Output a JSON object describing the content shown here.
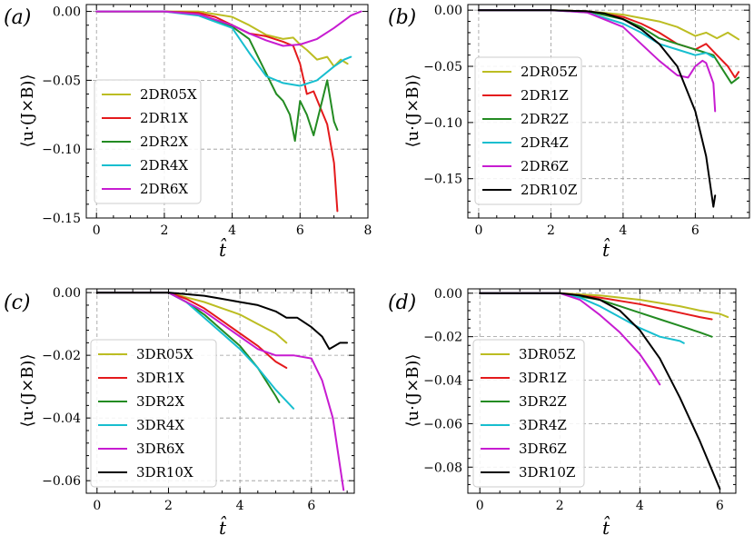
{
  "chart_data": [
    {
      "type": "line",
      "panel_label": "(a)",
      "xlabel": "t̂",
      "ylabel": "⟨u·(J×B)⟩",
      "xlim": [
        -0.3,
        8
      ],
      "ylim": [
        -0.15,
        0.005
      ],
      "xticks": [
        0,
        2,
        4,
        6,
        8
      ],
      "xtick_labels": [
        "0",
        "2",
        "4",
        "6",
        "8"
      ],
      "yticks": [
        0,
        -0.05,
        -0.1,
        -0.15
      ],
      "ytick_labels": [
        "0.00",
        "−0.05",
        "−0.10",
        "−0.15"
      ],
      "grid": true,
      "legend": "bottom-left",
      "series": [
        {
          "name": "2DR05X",
          "color": "#bcbd22",
          "x": [
            0,
            2,
            3,
            4,
            4.5,
            5,
            5.5,
            5.8,
            6,
            6.2,
            6.5,
            6.8,
            7,
            7.2,
            7.4
          ],
          "y": [
            0,
            0,
            0,
            -0.004,
            -0.01,
            -0.017,
            -0.02,
            -0.019,
            -0.024,
            -0.028,
            -0.035,
            -0.033,
            -0.04,
            -0.035,
            -0.038
          ]
        },
        {
          "name": "2DR1X",
          "color": "#e41a1c",
          "x": [
            0,
            2,
            3,
            3.5,
            4,
            4.5,
            5,
            5.5,
            5.8,
            6,
            6.2,
            6.4,
            6.6,
            6.8,
            7,
            7.1
          ],
          "y": [
            0,
            0,
            -0.001,
            -0.004,
            -0.01,
            -0.016,
            -0.018,
            -0.022,
            -0.025,
            -0.038,
            -0.06,
            -0.058,
            -0.07,
            -0.082,
            -0.11,
            -0.145
          ]
        },
        {
          "name": "2DR2X",
          "color": "#238b22",
          "x": [
            0,
            2,
            3,
            4,
            4.5,
            5,
            5.3,
            5.5,
            5.7,
            5.85,
            6,
            6.2,
            6.4,
            6.6,
            6.8,
            7,
            7.1
          ],
          "y": [
            0,
            0,
            -0.002,
            -0.011,
            -0.02,
            -0.045,
            -0.06,
            -0.065,
            -0.075,
            -0.094,
            -0.065,
            -0.075,
            -0.09,
            -0.07,
            -0.05,
            -0.08,
            -0.086
          ]
        },
        {
          "name": "2DR4X",
          "color": "#17becf",
          "x": [
            0,
            2,
            3,
            4,
            4.5,
            5,
            5.5,
            6,
            6.5,
            7,
            7.3,
            7.5
          ],
          "y": [
            0,
            0,
            -0.003,
            -0.012,
            -0.03,
            -0.047,
            -0.052,
            -0.054,
            -0.05,
            -0.04,
            -0.035,
            -0.033
          ]
        },
        {
          "name": "2DR6X",
          "color": "#c71cd1",
          "x": [
            0,
            2,
            3,
            4,
            4.5,
            5,
            5.5,
            6,
            6.5,
            7,
            7.5,
            7.8
          ],
          "y": [
            0,
            0,
            -0.002,
            -0.01,
            -0.016,
            -0.021,
            -0.025,
            -0.024,
            -0.02,
            -0.012,
            -0.003,
            0
          ]
        }
      ]
    },
    {
      "type": "line",
      "panel_label": "(b)",
      "xlabel": "t̂",
      "ylabel": "⟨u·(J×B)⟩",
      "xlim": [
        -0.3,
        7.5
      ],
      "ylim": [
        -0.185,
        0.005
      ],
      "xticks": [
        0,
        2,
        4,
        6
      ],
      "xtick_labels": [
        "0",
        "2",
        "4",
        "6"
      ],
      "yticks": [
        0,
        -0.05,
        -0.1,
        -0.15
      ],
      "ytick_labels": [
        "0.00",
        "−0.05",
        "−0.10",
        "−0.15"
      ],
      "grid": true,
      "legend": "bottom-left",
      "series": [
        {
          "name": "2DR05Z",
          "color": "#bcbd22",
          "x": [
            0,
            2,
            3,
            4,
            5,
            5.5,
            6,
            6.3,
            6.6,
            6.9,
            7.2
          ],
          "y": [
            0,
            0,
            -0.001,
            -0.004,
            -0.01,
            -0.015,
            -0.023,
            -0.02,
            -0.025,
            -0.02,
            -0.026
          ]
        },
        {
          "name": "2DR1Z",
          "color": "#e41a1c",
          "x": [
            0,
            2,
            3,
            4,
            4.5,
            5,
            5.5,
            6,
            6.3,
            6.6,
            6.9,
            7.1,
            7.2
          ],
          "y": [
            0,
            0,
            -0.001,
            -0.006,
            -0.012,
            -0.02,
            -0.03,
            -0.035,
            -0.03,
            -0.04,
            -0.05,
            -0.06,
            -0.055
          ]
        },
        {
          "name": "2DR2Z",
          "color": "#238b22",
          "x": [
            0,
            2,
            3,
            4,
            4.5,
            5,
            5.5,
            6,
            6.5,
            7,
            7.2
          ],
          "y": [
            0,
            0,
            -0.001,
            -0.008,
            -0.015,
            -0.025,
            -0.03,
            -0.035,
            -0.04,
            -0.065,
            -0.06
          ]
        },
        {
          "name": "2DR4Z",
          "color": "#17becf",
          "x": [
            0,
            2,
            3,
            4,
            4.5,
            5,
            5.5,
            6,
            6.3,
            6.5
          ],
          "y": [
            0,
            0,
            -0.002,
            -0.012,
            -0.02,
            -0.03,
            -0.035,
            -0.04,
            -0.038,
            -0.042
          ]
        },
        {
          "name": "2DR6Z",
          "color": "#c71cd1",
          "x": [
            0,
            2,
            3,
            4,
            4.5,
            5,
            5.5,
            5.8,
            6,
            6.2,
            6.3,
            6.5,
            6.55
          ],
          "y": [
            0,
            0,
            -0.002,
            -0.015,
            -0.03,
            -0.045,
            -0.058,
            -0.06,
            -0.05,
            -0.045,
            -0.047,
            -0.065,
            -0.09
          ]
        },
        {
          "name": "2DR10Z",
          "color": "#000000",
          "x": [
            0,
            2,
            3,
            3.5,
            4,
            4.5,
            5,
            5.5,
            6,
            6.3,
            6.5,
            6.55
          ],
          "y": [
            0,
            0,
            -0.001,
            -0.003,
            -0.008,
            -0.017,
            -0.03,
            -0.05,
            -0.09,
            -0.13,
            -0.175,
            -0.165
          ]
        }
      ]
    },
    {
      "type": "line",
      "panel_label": "(c)",
      "xlabel": "t̂",
      "ylabel": "⟨u·(J×B)⟩",
      "xlim": [
        -0.3,
        7.2
      ],
      "ylim": [
        -0.064,
        0.0012
      ],
      "xticks": [
        0,
        2,
        4,
        6
      ],
      "xtick_labels": [
        "0",
        "2",
        "4",
        "6"
      ],
      "yticks": [
        0,
        -0.02,
        -0.04,
        -0.06
      ],
      "ytick_labels": [
        "0.00",
        "−0.02",
        "−0.04",
        "−0.06"
      ],
      "grid": true,
      "legend": "bottom-left",
      "series": [
        {
          "name": "3DR05X",
          "color": "#bcbd22",
          "x": [
            0,
            2,
            2.5,
            3,
            3.5,
            4,
            4.5,
            5,
            5.3
          ],
          "y": [
            0,
            0,
            -0.0015,
            -0.003,
            -0.005,
            -0.007,
            -0.01,
            -0.013,
            -0.016
          ]
        },
        {
          "name": "3DR1X",
          "color": "#e41a1c",
          "x": [
            0,
            2,
            2.5,
            3,
            3.5,
            4,
            4.5,
            5,
            5.3
          ],
          "y": [
            0,
            0,
            -0.002,
            -0.005,
            -0.009,
            -0.013,
            -0.017,
            -0.022,
            -0.024
          ]
        },
        {
          "name": "3DR2X",
          "color": "#238b22",
          "x": [
            0,
            2,
            2.5,
            3,
            3.5,
            4,
            4.5,
            5,
            5.1
          ],
          "y": [
            0,
            0,
            -0.003,
            -0.007,
            -0.012,
            -0.017,
            -0.024,
            -0.033,
            -0.035
          ]
        },
        {
          "name": "3DR4X",
          "color": "#17becf",
          "x": [
            0,
            2,
            2.5,
            3,
            3.5,
            4,
            4.5,
            5,
            5.5
          ],
          "y": [
            0,
            0,
            -0.003,
            -0.008,
            -0.013,
            -0.018,
            -0.024,
            -0.031,
            -0.037
          ]
        },
        {
          "name": "3DR6X",
          "color": "#c71cd1",
          "x": [
            0,
            2,
            3,
            3.5,
            4,
            4.5,
            5,
            5.5,
            6,
            6.3,
            6.6,
            6.9
          ],
          "y": [
            0,
            0,
            -0.006,
            -0.01,
            -0.014,
            -0.018,
            -0.02,
            -0.02,
            -0.021,
            -0.028,
            -0.04,
            -0.063
          ]
        },
        {
          "name": "3DR10X",
          "color": "#000000",
          "x": [
            0,
            2,
            3,
            3.5,
            4,
            4.5,
            5,
            5.3,
            5.6,
            6,
            6.3,
            6.5,
            6.8,
            7
          ],
          "y": [
            0,
            0,
            -0.001,
            -0.002,
            -0.003,
            -0.004,
            -0.006,
            -0.008,
            -0.008,
            -0.011,
            -0.014,
            -0.018,
            -0.016,
            -0.016
          ]
        }
      ]
    },
    {
      "type": "line",
      "panel_label": "(d)",
      "xlabel": "t̂",
      "ylabel": "⟨u·(J×B)⟩",
      "xlim": [
        -0.3,
        6.4
      ],
      "ylim": [
        -0.092,
        0.002
      ],
      "xticks": [
        0,
        2,
        4,
        6
      ],
      "xtick_labels": [
        "0",
        "2",
        "4",
        "6"
      ],
      "yticks": [
        0,
        -0.02,
        -0.04,
        -0.06,
        -0.08
      ],
      "ytick_labels": [
        "0.00",
        "−0.02",
        "−0.04",
        "−0.06",
        "−0.08"
      ],
      "grid": true,
      "legend": "bottom-left",
      "series": [
        {
          "name": "3DR05Z",
          "color": "#bcbd22",
          "x": [
            0,
            2,
            3,
            4,
            5,
            5.5,
            6,
            6.2
          ],
          "y": [
            0,
            0,
            -0.001,
            -0.003,
            -0.006,
            -0.008,
            -0.0095,
            -0.011
          ]
        },
        {
          "name": "3DR1Z",
          "color": "#e41a1c",
          "x": [
            0,
            2,
            3,
            4,
            4.5,
            5,
            5.5,
            5.8
          ],
          "y": [
            0,
            0,
            -0.002,
            -0.005,
            -0.007,
            -0.009,
            -0.011,
            -0.012
          ]
        },
        {
          "name": "3DR2Z",
          "color": "#238b22",
          "x": [
            0,
            2,
            3,
            3.5,
            4,
            4.5,
            5,
            5.5,
            5.8
          ],
          "y": [
            0,
            0,
            -0.003,
            -0.006,
            -0.009,
            -0.012,
            -0.015,
            -0.018,
            -0.02
          ]
        },
        {
          "name": "3DR4Z",
          "color": "#17becf",
          "x": [
            0,
            2,
            2.5,
            3,
            3.5,
            4,
            4.5,
            5,
            5.1
          ],
          "y": [
            0,
            0,
            -0.002,
            -0.006,
            -0.011,
            -0.016,
            -0.02,
            -0.022,
            -0.023
          ]
        },
        {
          "name": "3DR6Z",
          "color": "#c71cd1",
          "x": [
            0,
            2,
            2.5,
            3,
            3.5,
            4,
            4.3,
            4.5
          ],
          "y": [
            0,
            0,
            -0.003,
            -0.01,
            -0.018,
            -0.028,
            -0.036,
            -0.042
          ]
        },
        {
          "name": "3DR10Z",
          "color": "#000000",
          "x": [
            0,
            2,
            2.5,
            3,
            3.5,
            4,
            4.5,
            5,
            5.5,
            6
          ],
          "y": [
            0,
            0,
            -0.001,
            -0.003,
            -0.008,
            -0.017,
            -0.03,
            -0.048,
            -0.068,
            -0.09
          ]
        }
      ]
    }
  ]
}
